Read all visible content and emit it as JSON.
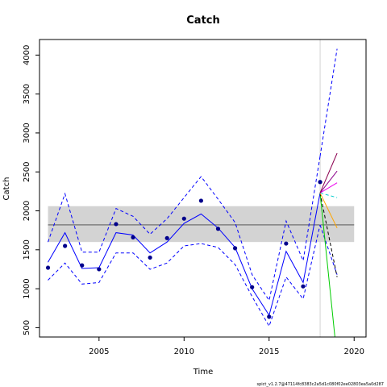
{
  "chart_data": {
    "type": "line",
    "title": "Catch",
    "xlabel": "Time",
    "ylabel": "Catch",
    "footnote": "spict_v1.2.7@47114fc8383c2a5d1c080f02ee02803ea5a0d287",
    "xlim": [
      2001.5,
      2020.7
    ],
    "ylim": [
      380,
      4200
    ],
    "x_ticks": [
      2005,
      2010,
      2015,
      2020
    ],
    "x_tick_labels": [
      "2005",
      "2010",
      "2015",
      "2020"
    ],
    "y_ticks": [
      500,
      1000,
      1500,
      2000,
      2500,
      3000,
      3500,
      4000
    ],
    "y_tick_labels": [
      "500",
      "1000",
      "1500",
      "2000",
      "2500",
      "3000",
      "3500",
      "4000"
    ],
    "grid": false,
    "msy_band": {
      "lower": 1600,
      "upper": 2060,
      "x_from": 2002,
      "x_to": 2020,
      "color": "#d3d3d3"
    },
    "msy_line": {
      "value": 1820,
      "x_from": 2002,
      "x_to": 2020,
      "color": "#808080"
    },
    "vline": {
      "x": 2018,
      "color": "#d3d3d3"
    },
    "series": [
      {
        "name": "",
        "kind": "points",
        "color": "#00008b",
        "x": [
          2002,
          2003,
          2004,
          2005,
          2006,
          2007,
          2008,
          2009,
          2010,
          2011,
          2012,
          2013,
          2014,
          2015,
          2016,
          2017,
          2018
        ],
        "y": [
          1270,
          1550,
          1300,
          1250,
          1830,
          1660,
          1400,
          1650,
          1900,
          2130,
          1770,
          1520,
          1020,
          640,
          1580,
          1030,
          2370
        ]
      },
      {
        "name": "",
        "kind": "line",
        "style": "solid",
        "color": "#0000ff",
        "x": [
          2002,
          2003,
          2004,
          2005,
          2006,
          2007,
          2008,
          2009,
          2010,
          2011,
          2012,
          2013,
          2014,
          2015,
          2016,
          2017,
          2018
        ],
        "y": [
          1340,
          1720,
          1260,
          1270,
          1720,
          1690,
          1460,
          1600,
          1840,
          1960,
          1780,
          1530,
          1000,
          660,
          1480,
          1080,
          2230
        ]
      },
      {
        "name": "",
        "kind": "line",
        "style": "dashed",
        "color": "#0000ff",
        "x": [
          2002,
          2003,
          2004,
          2005,
          2006,
          2007,
          2008,
          2009,
          2010,
          2011,
          2012,
          2013,
          2014,
          2015,
          2016,
          2017,
          2018
        ],
        "y": [
          1600,
          2220,
          1470,
          1470,
          2030,
          1930,
          1700,
          1900,
          2170,
          2440,
          2150,
          1850,
          1180,
          850,
          1870,
          1360,
          2700
        ]
      },
      {
        "name": "",
        "kind": "line",
        "style": "dashed",
        "color": "#0000ff",
        "x": [
          2002,
          2003,
          2004,
          2005,
          2006,
          2007,
          2008,
          2009,
          2010,
          2011,
          2012,
          2013,
          2014,
          2015,
          2016,
          2017,
          2018
        ],
        "y": [
          1110,
          1330,
          1060,
          1080,
          1460,
          1460,
          1250,
          1330,
          1550,
          1580,
          1530,
          1310,
          900,
          520,
          1150,
          870,
          1820
        ]
      },
      {
        "name": "",
        "kind": "line",
        "style": "dashed",
        "color": "#0000ff",
        "x": [
          2018,
          2019
        ],
        "y": [
          2700,
          4080
        ]
      },
      {
        "name": "",
        "kind": "line",
        "style": "dashed",
        "color": "#0000ff",
        "x": [
          2018,
          2019
        ],
        "y": [
          1820,
          1180
        ]
      },
      {
        "name": "",
        "kind": "line",
        "style": "solid",
        "color": "#00cc00",
        "x": [
          2018,
          2018.87
        ],
        "y": [
          2230,
          380
        ]
      },
      {
        "name": "",
        "kind": "line",
        "style": "dashed",
        "color": "#000000",
        "x": [
          2018,
          2019
        ],
        "y": [
          2230,
          1150
        ]
      },
      {
        "name": "",
        "kind": "line",
        "style": "solid",
        "color": "#ffa500",
        "x": [
          2018,
          2019
        ],
        "y": [
          2230,
          1780
        ]
      },
      {
        "name": "",
        "kind": "line",
        "style": "dashed",
        "color": "#00cccc",
        "x": [
          2018,
          2019
        ],
        "y": [
          2230,
          2170
        ]
      },
      {
        "name": "",
        "kind": "line",
        "style": "solid",
        "color": "#ee00ee",
        "x": [
          2018,
          2019
        ],
        "y": [
          2230,
          2360
        ]
      },
      {
        "name": "",
        "kind": "line",
        "style": "solid",
        "color": "#8b008b",
        "x": [
          2018,
          2019
        ],
        "y": [
          2230,
          2510
        ]
      },
      {
        "name": "",
        "kind": "line",
        "style": "solid",
        "color": "#8b0050",
        "x": [
          2018,
          2019
        ],
        "y": [
          2230,
          2740
        ]
      }
    ]
  }
}
